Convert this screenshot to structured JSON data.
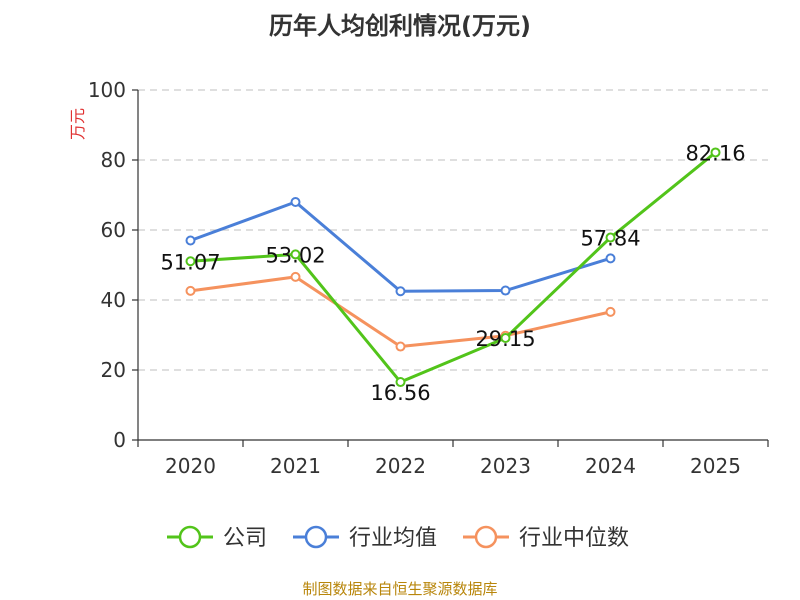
{
  "chart_data": {
    "type": "line",
    "title": "历年人均创利情况(万元)",
    "ylabel": "万元",
    "xlabel": "",
    "ylim": [
      0,
      100
    ],
    "yticks": [
      0,
      20,
      40,
      60,
      80,
      100
    ],
    "categories": [
      "2020",
      "2021",
      "2022",
      "2023",
      "2024",
      "2025"
    ],
    "series": [
      {
        "name": "公司",
        "color": "#52c41a",
        "values": [
          51.07,
          53.02,
          16.56,
          29.15,
          57.84,
          82.16
        ],
        "labels": [
          "51.07",
          "53.02",
          "16.56",
          "29.15",
          "57.84",
          "82.16"
        ]
      },
      {
        "name": "行业均值",
        "color": "#4a7fd8",
        "values": [
          57.0,
          68.0,
          42.5,
          42.7,
          51.9,
          null
        ]
      },
      {
        "name": "行业中位数",
        "color": "#f5925e",
        "values": [
          42.6,
          46.6,
          26.7,
          29.8,
          36.6,
          null
        ]
      }
    ],
    "grid": true,
    "legend": "bottom"
  },
  "footer": {
    "source": "制图数据来自恒生聚源数据库"
  }
}
